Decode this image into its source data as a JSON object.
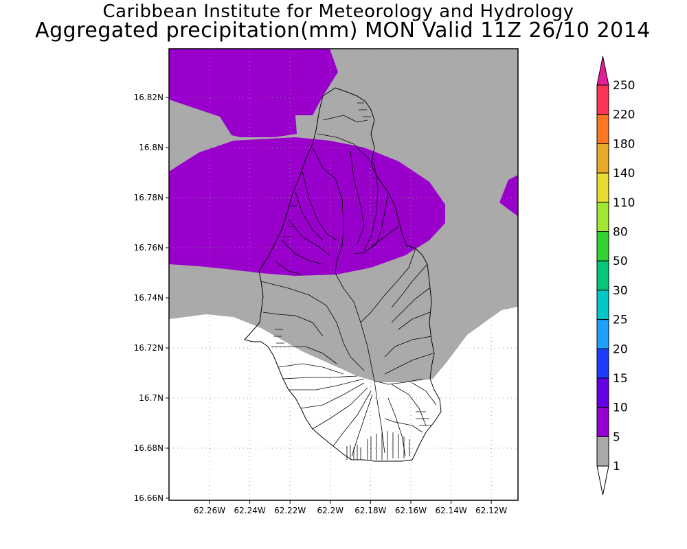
{
  "header": {
    "title": "Caribbean Institute for Meteorology and Hydrology",
    "subtitle": "Aggregated precipitation(mm) MON Valid 11Z 26/10 2014"
  },
  "map": {
    "lat_ticks": [
      "16.82N",
      "16.8N",
      "16.78N",
      "16.76N",
      "16.74N",
      "16.72N",
      "16.7N",
      "16.68N",
      "16.66N"
    ],
    "lon_ticks": [
      "62.26W",
      "62.24W",
      "62.22W",
      "62.2W",
      "62.18W",
      "62.16W",
      "62.14W",
      "62.12W"
    ],
    "colors": {
      "light": "#aaaaaa",
      "moderate": "#9900cc",
      "none": "#ffffff"
    }
  },
  "legend": {
    "levels": [
      {
        "label": "250",
        "color": "#ff3355"
      },
      {
        "label": "220",
        "color": "#ff7722"
      },
      {
        "label": "180",
        "color": "#e8a828"
      },
      {
        "label": "140",
        "color": "#e6dc32"
      },
      {
        "label": "110",
        "color": "#a0e632"
      },
      {
        "label": "80",
        "color": "#32d232"
      },
      {
        "label": "50",
        "color": "#00c878"
      },
      {
        "label": "30",
        "color": "#00c8c8"
      },
      {
        "label": "25",
        "color": "#1ea0ff"
      },
      {
        "label": "20",
        "color": "#1e3cff"
      },
      {
        "label": "15",
        "color": "#6400e6"
      },
      {
        "label": "10",
        "color": "#9600d2"
      },
      {
        "label": "5",
        "color": "#aaaaaa"
      },
      {
        "label": "1",
        "color": "#ffffff"
      }
    ],
    "top_arrow_color": "#e61e96"
  }
}
